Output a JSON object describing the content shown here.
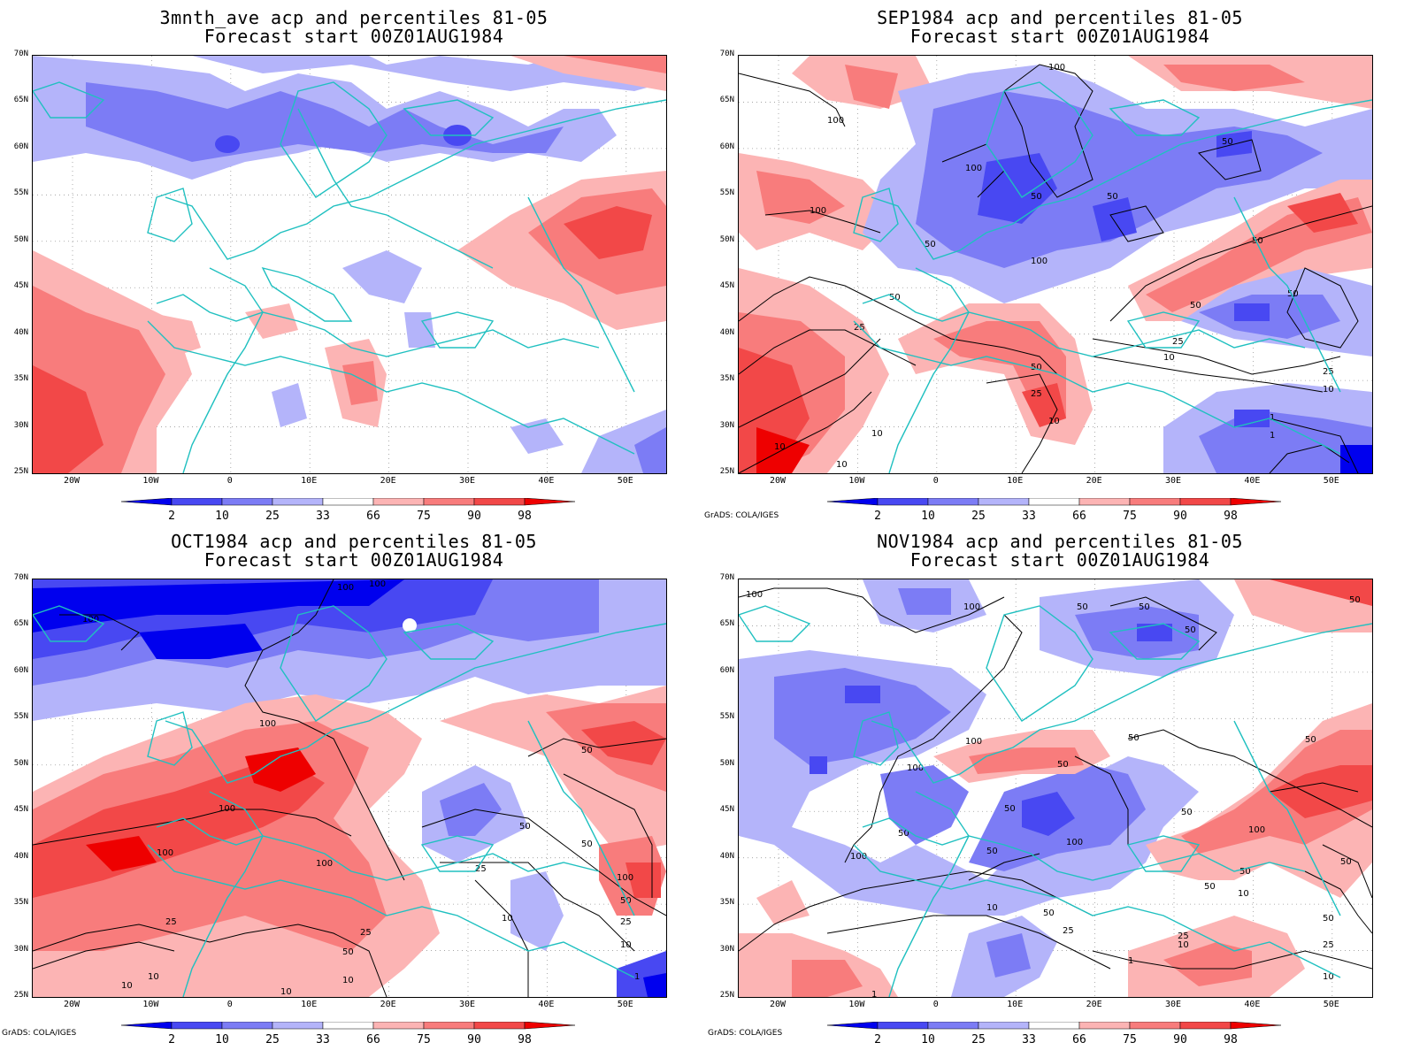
{
  "panels": [
    {
      "title": "3mnth_ave acp and percentiles 81-05",
      "subtitle": "Forecast start 00Z01AUG1984"
    },
    {
      "title": "SEP1984 acp and percentiles 81-05",
      "subtitle": "Forecast start 00Z01AUG1984"
    },
    {
      "title": "OCT1984 acp and percentiles 81-05",
      "subtitle": "Forecast start 00Z01AUG1984"
    },
    {
      "title": "NOV1984 acp and percentiles 81-05",
      "subtitle": "Forecast start 00Z01AUG1984"
    }
  ],
  "lat_labels": [
    "70N",
    "65N",
    "60N",
    "55N",
    "50N",
    "45N",
    "40N",
    "35N",
    "30N",
    "25N"
  ],
  "lon_labels": [
    "20W",
    "10W",
    "0",
    "10E",
    "20E",
    "30E",
    "40E",
    "50E"
  ],
  "colorbar": {
    "ticks": [
      "2",
      "10",
      "25",
      "33",
      "66",
      "75",
      "90",
      "98"
    ],
    "colors": [
      "#0000ee",
      "#4848f2",
      "#7c7cf5",
      "#b4b4fa",
      "#ffffff",
      "#fcb4b4",
      "#f87c7c",
      "#f24848",
      "#ee0000"
    ]
  },
  "credit": "GrADS: COLA/IGES",
  "colors": {
    "coast": "#20c0c0",
    "contour": "#000000"
  }
}
